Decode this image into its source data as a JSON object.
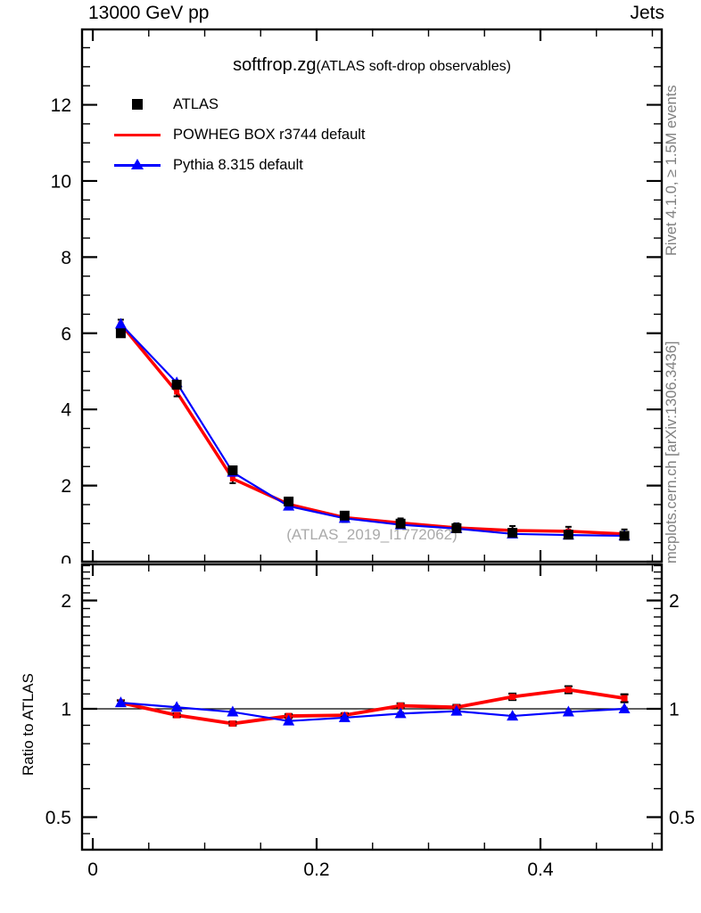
{
  "header": {
    "left_label": "13000 GeV pp",
    "right_label": "Jets"
  },
  "titles": {
    "main": "softfrop.zg",
    "subtitle": "(ATLAS soft-drop observables)",
    "watermark": "(ATLAS_2019_I1772062)"
  },
  "side_notes": {
    "top_rotated": "Rivet 4.1.0, ≥ 1.5M events",
    "bottom_rotated": "mcplots.cern.ch [arXiv:1306.3436]"
  },
  "ratio_panel": {
    "ylabel": "Ratio to ATLAS"
  },
  "colors": {
    "data": "#000000",
    "powheg": "#ff0000",
    "pythia": "#0000ff",
    "muted_text": "#808080",
    "watermark_text": "#aaaaaa"
  },
  "legend": {
    "items": [
      {
        "label": "ATLAS",
        "marker": "square",
        "color": "#000000"
      },
      {
        "label": "POWHEG BOX r3744 default",
        "marker": "line",
        "color": "#ff0000"
      },
      {
        "label": "Pythia 8.315 default",
        "marker": "line-triangle",
        "color": "#0000ff"
      }
    ]
  },
  "chart_data": {
    "type": "line",
    "title": "softfrop.zg (ATLAS soft-drop observables)",
    "x": [
      0.025,
      0.075,
      0.125,
      0.175,
      0.225,
      0.275,
      0.325,
      0.375,
      0.425,
      0.475
    ],
    "series": [
      {
        "name": "ATLAS",
        "color": "#000000",
        "marker": "square",
        "values": [
          6.0,
          4.65,
          2.4,
          1.58,
          1.21,
          1.0,
          0.88,
          0.76,
          0.71,
          0.68
        ]
      },
      {
        "name": "POWHEG BOX r3744 default",
        "color": "#ff0000",
        "marker": "cross",
        "values": [
          6.24,
          4.46,
          2.18,
          1.51,
          1.16,
          1.02,
          0.89,
          0.82,
          0.8,
          0.73
        ],
        "ratio": [
          1.04,
          0.96,
          0.91,
          0.955,
          0.96,
          1.02,
          1.01,
          1.08,
          1.13,
          1.07
        ],
        "ratio_err": [
          0.015,
          0.012,
          0.012,
          0.012,
          0.012,
          0.015,
          0.015,
          0.02,
          0.022,
          0.025
        ]
      },
      {
        "name": "Pythia 8.315 default",
        "color": "#0000ff",
        "marker": "triangle",
        "values": [
          6.24,
          4.7,
          2.35,
          1.46,
          1.14,
          0.97,
          0.87,
          0.73,
          0.7,
          0.68
        ],
        "ratio": [
          1.04,
          1.01,
          0.98,
          0.925,
          0.945,
          0.97,
          0.985,
          0.955,
          0.98,
          1.0
        ],
        "ratio_err": [
          0.01,
          0.008,
          0.008,
          0.008,
          0.008,
          0.008,
          0.008,
          0.008,
          0.008,
          0.008
        ]
      }
    ],
    "x_axis": {
      "range": [
        -0.0096,
        0.5084
      ],
      "major_ticks": [
        0,
        0.2,
        0.4
      ],
      "tick_labels": [
        "0",
        "0.2",
        "0.4"
      ],
      "minor_step": 0.05
    },
    "y_axis_main": {
      "range": [
        0,
        13.98
      ],
      "major_ticks": [
        0,
        2,
        4,
        6,
        8,
        10,
        12
      ],
      "tick_labels": [
        "0",
        "2",
        "4",
        "6",
        "8",
        "10",
        "12"
      ],
      "minor_step": 0.5
    },
    "y_axis_ratio": {
      "scale": "log",
      "range": [
        0.406,
        2.52
      ],
      "major_ticks": [
        0.5,
        1,
        2
      ],
      "tick_labels": [
        "0.5",
        "1",
        "2"
      ],
      "minor_ticks": [
        0.45,
        0.6,
        0.7,
        0.8,
        0.9,
        1.1,
        1.2,
        1.3,
        1.4,
        1.5,
        1.6,
        1.7,
        1.8,
        1.9,
        2.1,
        2.2,
        2.3,
        2.4,
        2.5
      ],
      "reference_line": 1
    },
    "grid": false,
    "legend_position": "top-left-inside"
  }
}
